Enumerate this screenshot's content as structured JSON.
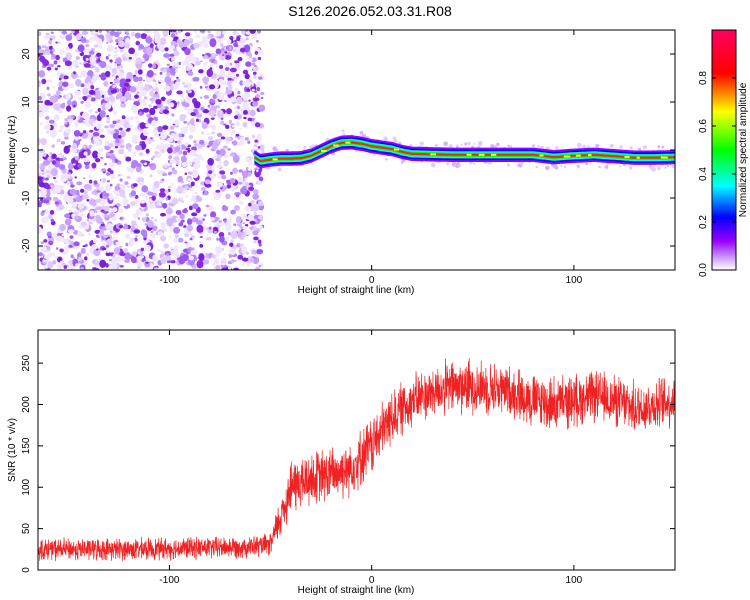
{
  "figure_title": "S126.2026.052.03.31.R08",
  "colors": {
    "spectrum_violet": "#8a2be2",
    "snr_line": "#ee2222",
    "axis": "#000000",
    "colorbar_stops": [
      "#ffffff",
      "#d6b3ff",
      "#9a00ff",
      "#0000ff",
      "#00ffff",
      "#00ff00",
      "#ffff00",
      "#ff0000",
      "#ff0060"
    ]
  },
  "chart_data": [
    {
      "type": "heatmap",
      "title": "",
      "xlabel": "Height of straight line (km)",
      "ylabel": "Frequency (Hz)",
      "xlim": [
        -165,
        150
      ],
      "ylim": [
        -25,
        25
      ],
      "xticks": [
        -100,
        0,
        100
      ],
      "yticks": [
        -20,
        -10,
        0,
        10,
        20
      ],
      "noise_region_x": [
        -165,
        -58
      ],
      "signal_onset_x": -58,
      "carrier_track": {
        "x": [
          -58,
          -55,
          -50,
          -45,
          -40,
          -35,
          -30,
          -25,
          -20,
          -15,
          -10,
          -5,
          0,
          5,
          10,
          15,
          20,
          40,
          60,
          80,
          90,
          100,
          110,
          120,
          130,
          140,
          150
        ],
        "freq": [
          -1.5,
          -2.3,
          -2.0,
          -1.8,
          -1.8,
          -1.7,
          -1.2,
          -0.2,
          0.8,
          1.5,
          1.6,
          1.3,
          0.8,
          0.5,
          0.2,
          -0.4,
          -0.8,
          -1.0,
          -1.0,
          -1.0,
          -1.5,
          -1.2,
          -1.0,
          -1.3,
          -1.6,
          -1.6,
          -1.5
        ]
      },
      "colorbar": {
        "label": "Normalized spectral amplitude",
        "range": [
          0.0,
          1.0
        ],
        "ticks": [
          0.0,
          0.2,
          0.4,
          0.6,
          0.8
        ]
      }
    },
    {
      "type": "line",
      "title": "",
      "xlabel": "Height of straight line (km)",
      "ylabel": "SNR (10 * v/v)",
      "xlim": [
        -165,
        150
      ],
      "ylim": [
        0,
        290
      ],
      "xticks": [
        -100,
        0,
        100
      ],
      "yticks": [
        0,
        50,
        100,
        150,
        200,
        250
      ],
      "series": [
        {
          "name": "SNR",
          "x": [
            -165,
            -140,
            -120,
            -100,
            -80,
            -60,
            -50,
            -45,
            -40,
            -30,
            -20,
            -10,
            0,
            10,
            20,
            30,
            40,
            50,
            60,
            70,
            80,
            90,
            100,
            110,
            120,
            130,
            140,
            150
          ],
          "y": [
            25,
            25,
            25,
            26,
            27,
            28,
            30,
            65,
            100,
            110,
            115,
            125,
            150,
            185,
            205,
            215,
            222,
            222,
            220,
            215,
            205,
            200,
            205,
            210,
            205,
            195,
            200,
            205
          ],
          "noise_amplitude": [
            12,
            12,
            12,
            12,
            12,
            12,
            12,
            25,
            30,
            30,
            30,
            30,
            32,
            30,
            28,
            28,
            30,
            30,
            28,
            28,
            30,
            30,
            28,
            28,
            28,
            28,
            28,
            28
          ]
        }
      ]
    }
  ]
}
